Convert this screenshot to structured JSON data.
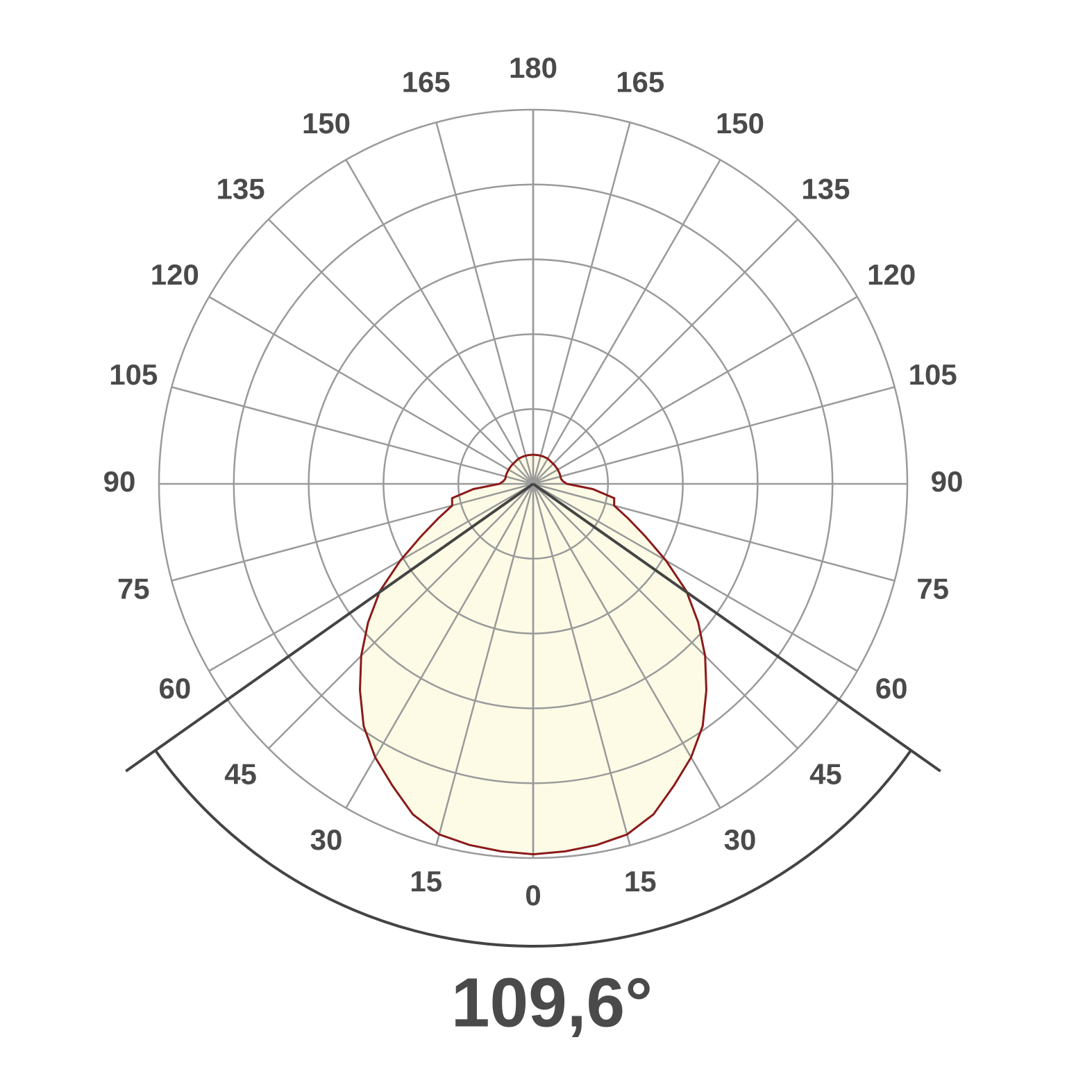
{
  "chart_data": {
    "type": "polar",
    "angles": [
      0,
      5,
      10,
      15,
      20,
      25,
      30,
      35,
      40,
      45,
      50,
      55,
      60,
      65,
      70,
      75,
      80,
      85,
      90,
      95,
      100,
      110,
      120,
      130,
      140,
      150,
      160,
      170,
      180
    ],
    "values": [
      4.95,
      4.93,
      4.9,
      4.85,
      4.7,
      4.45,
      4.22,
      3.95,
      3.6,
      3.25,
      2.88,
      2.5,
      2.05,
      1.65,
      1.35,
      1.12,
      1.1,
      0.8,
      0.45,
      0.4,
      0.38,
      0.38,
      0.38,
      0.38,
      0.38,
      0.39,
      0.39,
      0.39,
      0.39
    ],
    "color": "#8b1a1a",
    "fill": "#fdfbe6",
    "rlim": [
      0,
      5
    ],
    "rticks": [
      1,
      2,
      3,
      4,
      5
    ],
    "angle_ticks": [
      0,
      15,
      30,
      45,
      60,
      75,
      90,
      105,
      120,
      135,
      150,
      165,
      180
    ],
    "grid": true,
    "beam_angle": {
      "value": 109.6,
      "label": "109,6°"
    }
  }
}
